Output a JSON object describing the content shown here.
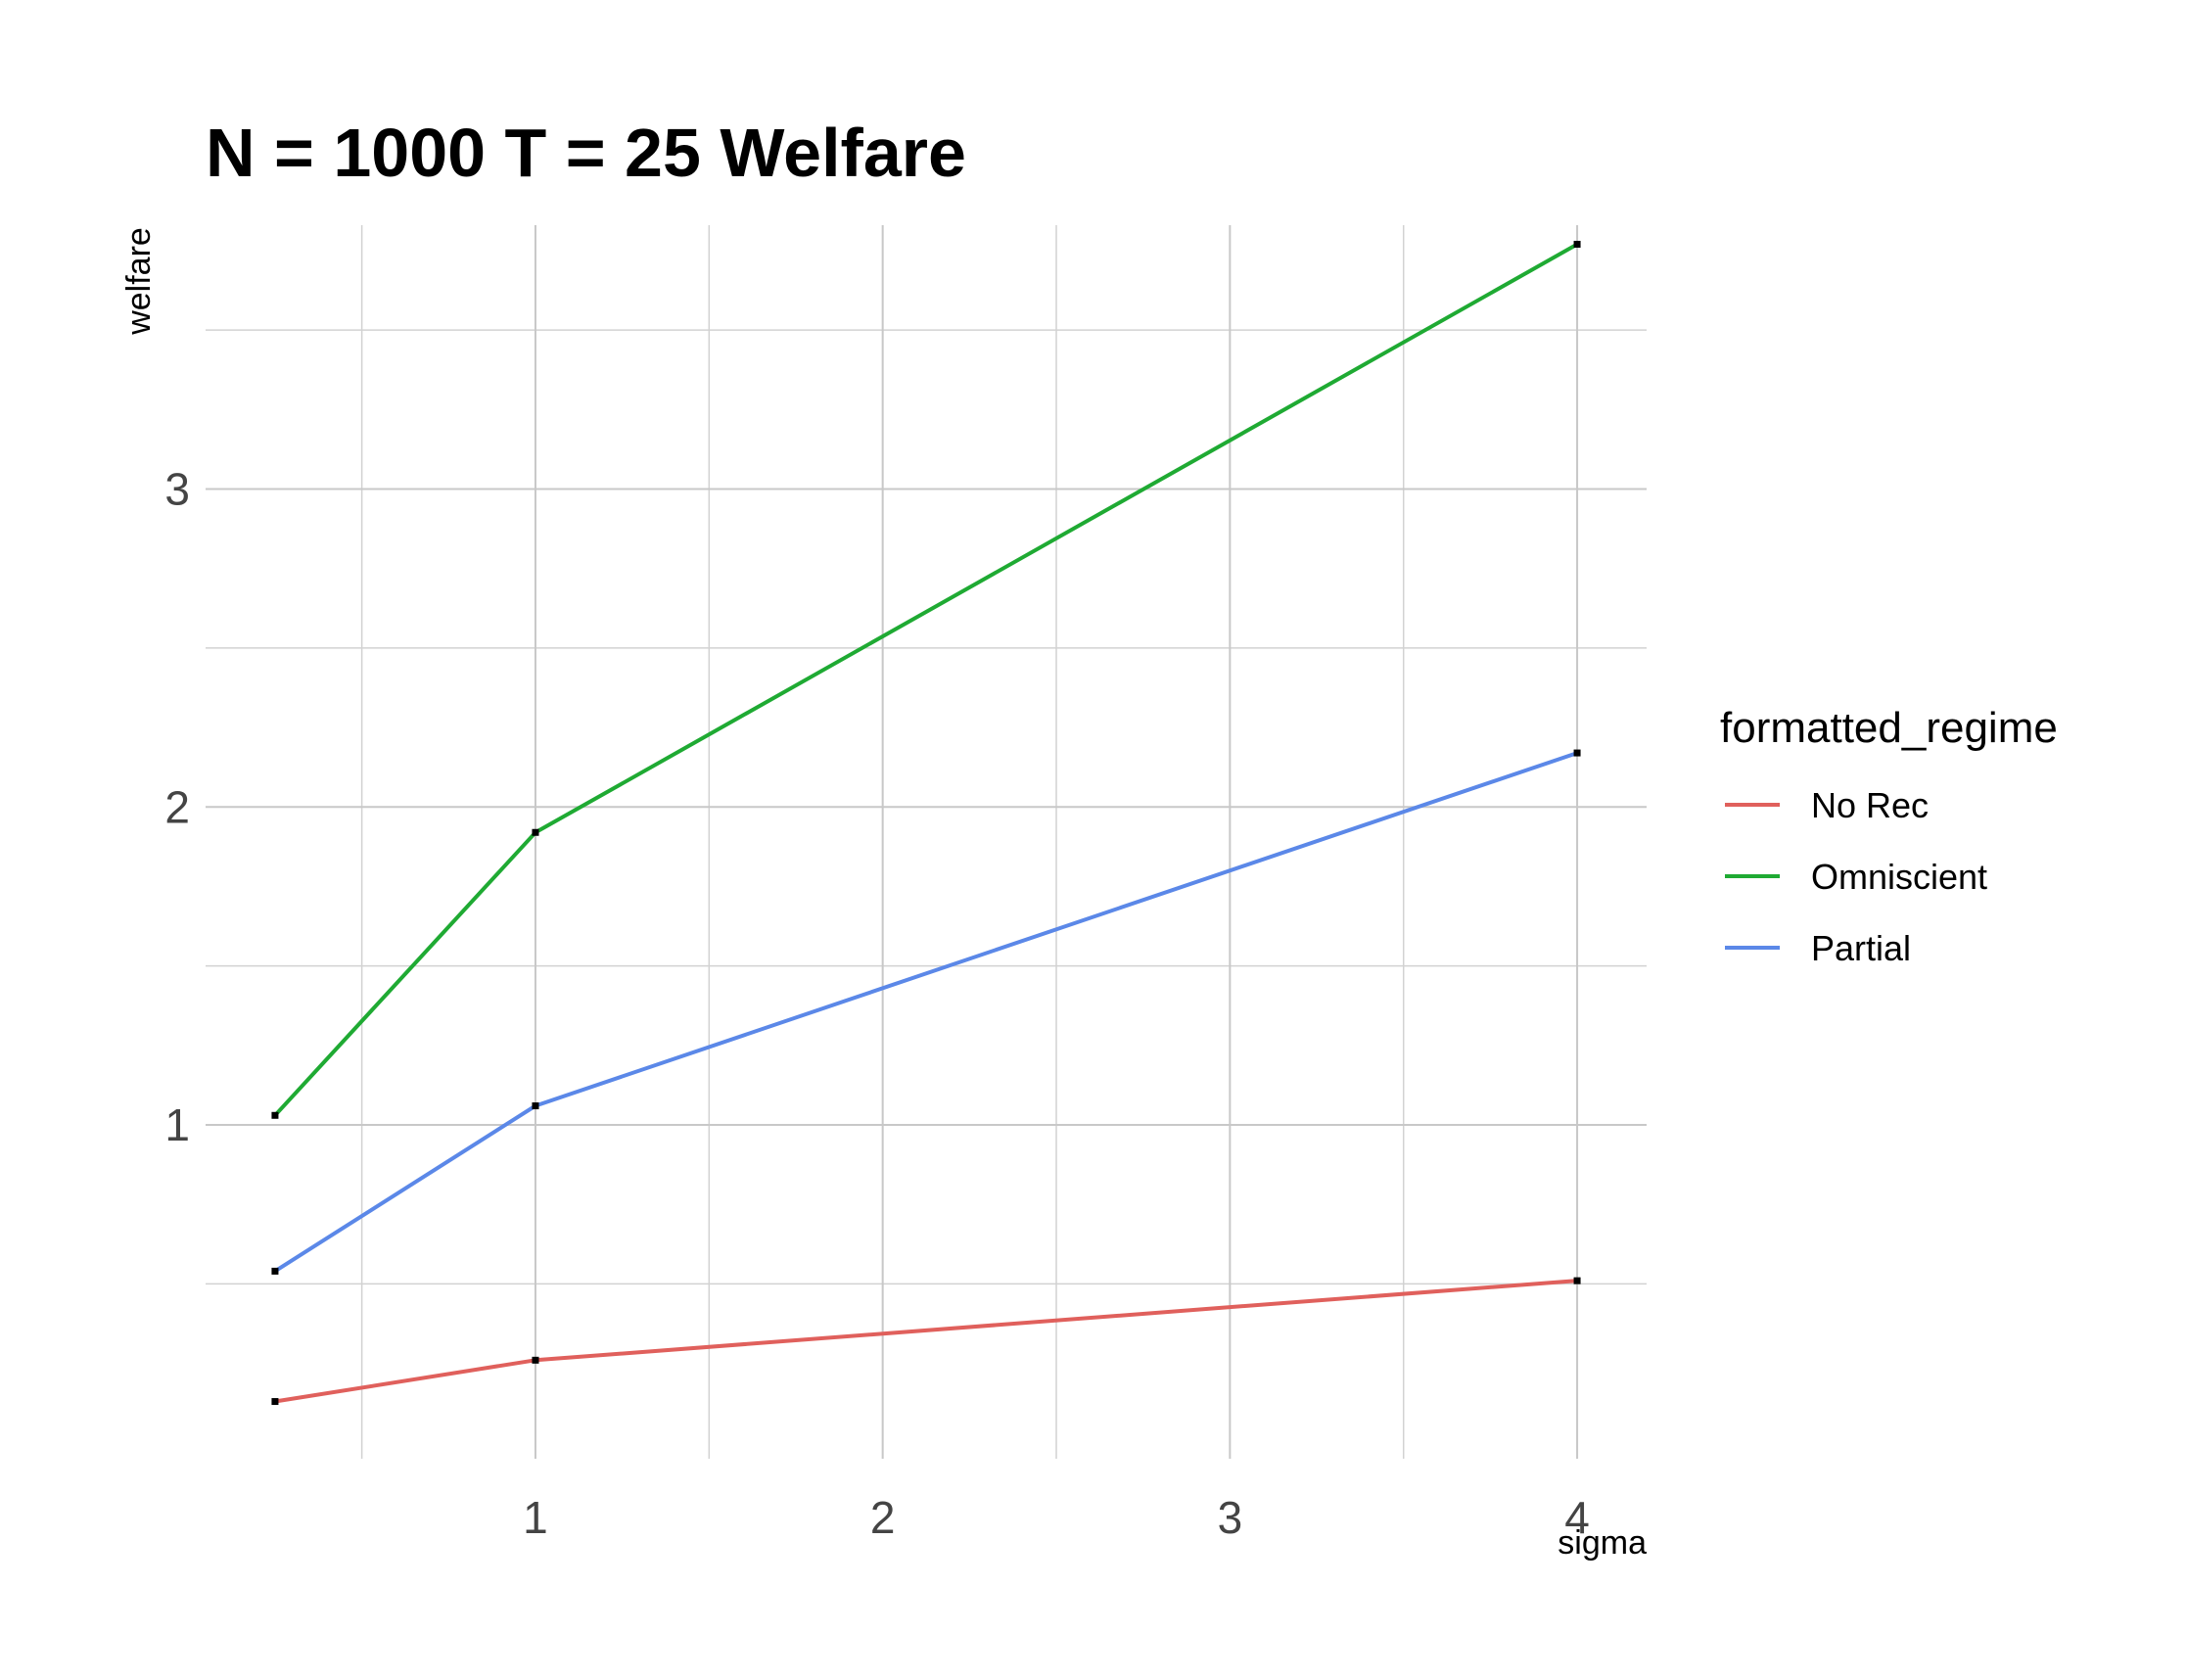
{
  "chart_data": {
    "type": "line",
    "title": "N = 1000 T = 25 Welfare",
    "xlabel": "sigma",
    "ylabel": "welfare",
    "xlim": [
      0.05,
      4.2
    ],
    "ylim": [
      -0.05,
      3.83
    ],
    "x_ticks": [
      1,
      2,
      3,
      4
    ],
    "y_ticks": [
      1,
      2,
      3
    ],
    "x_minor_ticks": [
      0.5,
      1.5,
      2.5,
      3.5
    ],
    "y_minor_ticks": [
      0.5,
      1.5,
      2.5,
      3.5
    ],
    "grid": true,
    "legend_title": "formatted_regime",
    "legend_position": "right",
    "x": [
      0.25,
      1,
      4
    ],
    "series": [
      {
        "name": "No Rec",
        "color": "#e0605c",
        "values": [
          0.13,
          0.26,
          0.51
        ]
      },
      {
        "name": "Omniscient",
        "color": "#1faa33",
        "values": [
          1.03,
          1.92,
          3.77
        ]
      },
      {
        "name": "Partial",
        "color": "#5b88e8",
        "values": [
          0.54,
          1.06,
          2.17
        ]
      }
    ]
  }
}
